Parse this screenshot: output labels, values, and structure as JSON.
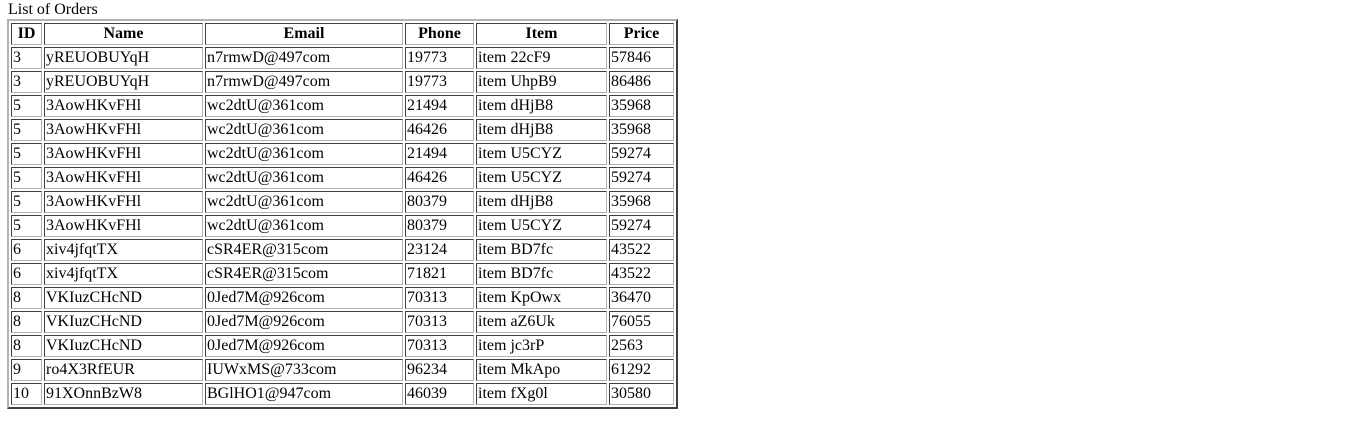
{
  "caption": "List of Orders",
  "table": {
    "headers": [
      "ID",
      "Name",
      "Email",
      "Phone",
      "Item",
      "Price"
    ],
    "rows": [
      [
        "3",
        "yREUOBUYqH",
        "n7rmwD@497com",
        "19773",
        "item 22cF9",
        "57846"
      ],
      [
        "3",
        "yREUOBUYqH",
        "n7rmwD@497com",
        "19773",
        "item UhpB9",
        "86486"
      ],
      [
        "5",
        "3AowHKvFHl",
        "wc2dtU@361com",
        "21494",
        "item dHjB8",
        "35968"
      ],
      [
        "5",
        "3AowHKvFHl",
        "wc2dtU@361com",
        "46426",
        "item dHjB8",
        "35968"
      ],
      [
        "5",
        "3AowHKvFHl",
        "wc2dtU@361com",
        "21494",
        "item U5CYZ",
        "59274"
      ],
      [
        "5",
        "3AowHKvFHl",
        "wc2dtU@361com",
        "46426",
        "item U5CYZ",
        "59274"
      ],
      [
        "5",
        "3AowHKvFHl",
        "wc2dtU@361com",
        "80379",
        "item dHjB8",
        "35968"
      ],
      [
        "5",
        "3AowHKvFHl",
        "wc2dtU@361com",
        "80379",
        "item U5CYZ",
        "59274"
      ],
      [
        "6",
        "xiv4jfqtTX",
        "cSR4ER@315com",
        "23124",
        "item BD7fc",
        "43522"
      ],
      [
        "6",
        "xiv4jfqtTX",
        "cSR4ER@315com",
        "71821",
        "item BD7fc",
        "43522"
      ],
      [
        "8",
        "VKIuzCHcND",
        "0Jed7M@926com",
        "70313",
        "item KpOwx",
        "36470"
      ],
      [
        "8",
        "VKIuzCHcND",
        "0Jed7M@926com",
        "70313",
        "item aZ6Uk",
        "76055"
      ],
      [
        "8",
        "VKIuzCHcND",
        "0Jed7M@926com",
        "70313",
        "item jc3rP",
        "2563"
      ],
      [
        "9",
        "ro4X3RfEUR",
        "IUWxMS@733com",
        "96234",
        "item MkApo",
        "61292"
      ],
      [
        "10",
        "91XOnnBzW8",
        "BGlHO1@947com",
        "46039",
        "item fXg0l",
        "30580"
      ]
    ]
  }
}
